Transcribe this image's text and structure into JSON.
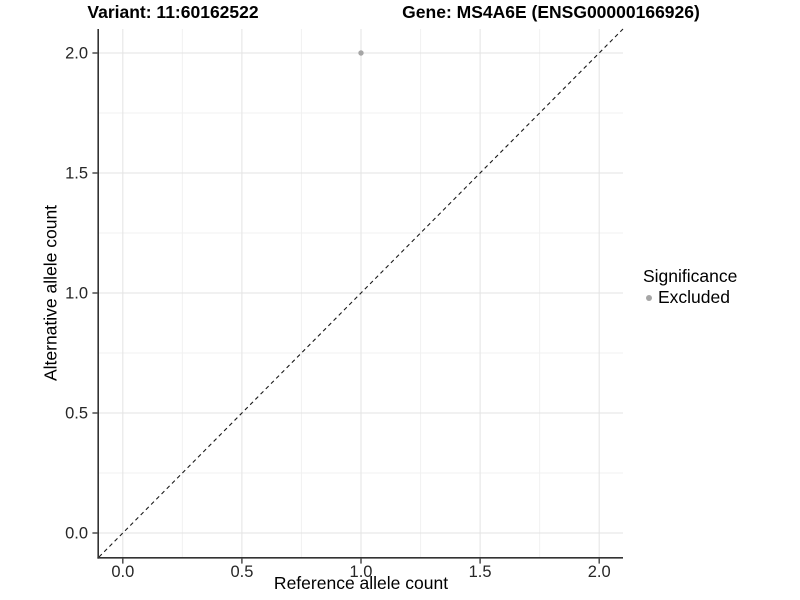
{
  "chart_data": {
    "type": "scatter",
    "title_left": "Variant: 11:60162522",
    "title_right": "Gene: MS4A6E (ENSG00000166926)",
    "xlabel": "Reference allele count",
    "ylabel": "Alternative allele count",
    "xlim": [
      -0.1,
      2.1
    ],
    "ylim": [
      -0.1,
      2.1
    ],
    "x_major_ticks": [
      0,
      0.5,
      1,
      1.5,
      2
    ],
    "y_major_ticks": [
      0,
      0.5,
      1,
      1.5,
      2
    ],
    "x_tick_labels": [
      "0.0",
      "0.5",
      "1.0",
      "1.5",
      "2.0"
    ],
    "y_tick_labels": [
      "0.0",
      "0.5",
      "1.0",
      "1.5",
      "2.0"
    ],
    "x_minor_ticks": [
      0.25,
      0.75,
      1.25,
      1.75
    ],
    "y_minor_ticks": [
      0.25,
      0.75,
      1.25,
      1.75
    ],
    "grid": "major-and-minor",
    "series": [
      {
        "name": "Excluded",
        "color": "#a6a6a6",
        "points": [
          {
            "x": 1.0,
            "y": 2.0
          }
        ]
      }
    ],
    "identity_line": {
      "slope": 1,
      "intercept": 0,
      "style": "dashed",
      "color": "#1a1a1a"
    },
    "legend": {
      "title": "Significance",
      "position": "right",
      "items": [
        {
          "label": "Excluded",
          "color": "#a6a6a6"
        }
      ]
    }
  },
  "colors": {
    "background": "#ffffff",
    "grid_major": "#e3e3e3",
    "grid_minor": "#f1f1f1",
    "axis_line": "#333333",
    "tick_mark": "#333333",
    "tick_label": "#262626",
    "point": "#a6a6a6"
  }
}
